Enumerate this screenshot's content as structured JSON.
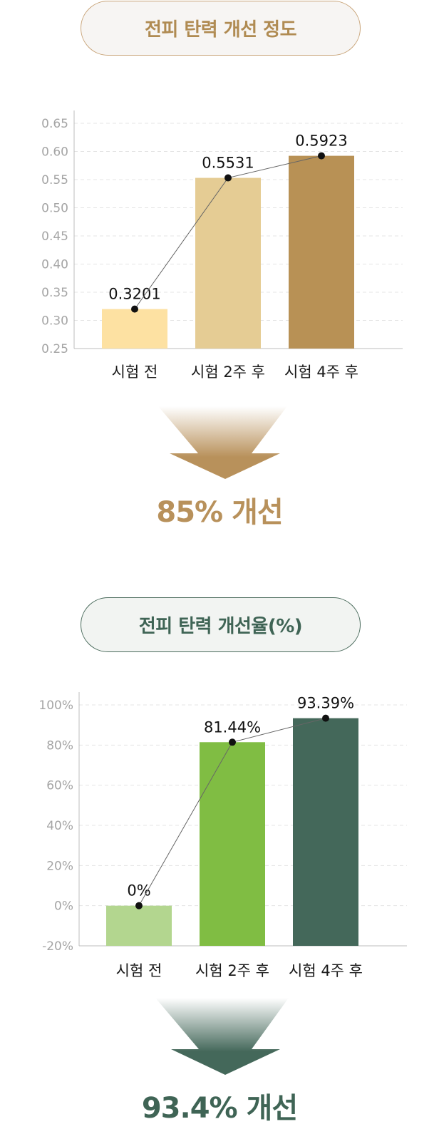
{
  "section1": {
    "title": "전피 탄력 개선 정도",
    "result": "85% 개선",
    "colors": {
      "accent": "#b8915b",
      "pill_border": "#c9a57a",
      "arrow": "#b8915b"
    }
  },
  "section2": {
    "title": "전피 탄력 개선율(%)",
    "result": "93.4% 개선",
    "colors": {
      "accent": "#3f6455",
      "pill_border": "#4a6b5c",
      "arrow": "#44685a"
    }
  },
  "chart_data": [
    {
      "type": "bar",
      "title": "전피 탄력 개선 정도",
      "categories": [
        "시험 전",
        "시험 2주 후",
        "시험 4주 후"
      ],
      "values": [
        0.3201,
        0.5531,
        0.5923
      ],
      "value_labels": [
        "0.3201",
        "0.5531",
        "0.5923"
      ],
      "bar_colors": [
        "#fde1a2",
        "#e5cc94",
        "#b89155"
      ],
      "ylim": [
        0.25,
        0.65
      ],
      "yticks": [
        0.25,
        0.3,
        0.35,
        0.4,
        0.45,
        0.5,
        0.55,
        0.6,
        0.65
      ],
      "ytick_labels": [
        "0.25",
        "0.30",
        "0.35",
        "0.40",
        "0.45",
        "0.50",
        "0.55",
        "0.60",
        "0.65"
      ],
      "line_overlay": true,
      "grid": true
    },
    {
      "type": "bar",
      "title": "전피 탄력 개선율(%)",
      "categories": [
        "시험 전",
        "시험 2주 후",
        "시험 4주 후"
      ],
      "values": [
        0,
        81.44,
        93.39
      ],
      "value_labels": [
        "0%",
        "81.44%",
        "93.39%"
      ],
      "bar_colors": [
        "#b3d68f",
        "#80bd43",
        "#44685a"
      ],
      "ylim": [
        -20,
        100
      ],
      "yticks": [
        -20,
        0,
        20,
        40,
        60,
        80,
        100
      ],
      "ytick_labels": [
        "-20%",
        "0%",
        "20%",
        "40%",
        "60%",
        "80%",
        "100%"
      ],
      "line_overlay": true,
      "grid": true
    }
  ]
}
